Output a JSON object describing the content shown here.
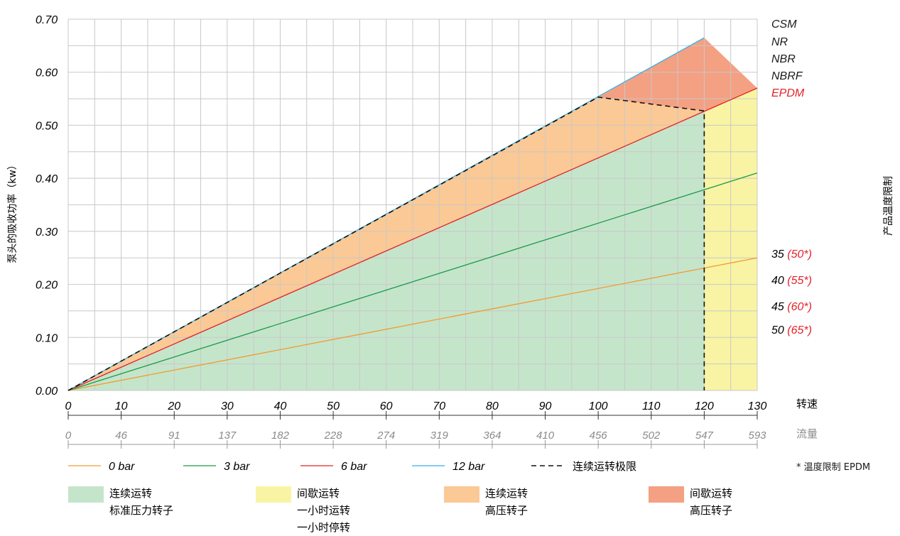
{
  "chart_data": {
    "type": "area",
    "ylabel": "泵头的吸收功率（kw）",
    "ylim": [
      0,
      0.7
    ],
    "y_ticks": [
      "0.00",
      "0.10",
      "0.20",
      "0.30",
      "0.40",
      "0.50",
      "0.60",
      "0.70"
    ],
    "xlim": [
      0,
      130
    ],
    "x_ticks": [
      "0",
      "10",
      "20",
      "30",
      "40",
      "50",
      "60",
      "70",
      "80",
      "90",
      "100",
      "110",
      "120",
      "130"
    ],
    "x_label": "转速",
    "flow_ticks": [
      "0",
      "46",
      "91",
      "137",
      "182",
      "228",
      "274",
      "319",
      "364",
      "410",
      "456",
      "502",
      "547",
      "593"
    ],
    "flow_label": "流量",
    "grid": true,
    "series": [
      {
        "name": "0 bar",
        "color": "#f29a2e",
        "x": [
          0,
          130
        ],
        "y": [
          0,
          0.25
        ]
      },
      {
        "name": "3 bar",
        "color": "#1a9a48",
        "x": [
          0,
          130
        ],
        "y": [
          0,
          0.41
        ]
      },
      {
        "name": "6 bar",
        "color": "#e32228",
        "x": [
          0,
          130
        ],
        "y": [
          0,
          0.57
        ]
      },
      {
        "name": "12 bar",
        "color": "#3aaee0",
        "x": [
          0,
          120
        ],
        "y": [
          0,
          0.665
        ]
      }
    ],
    "limit_line": {
      "name": "连续运转极限",
      "x": [
        0,
        100,
        120,
        120
      ],
      "y": [
        0,
        0.553,
        0.527,
        0
      ]
    },
    "regions": [
      {
        "label1": "连续运转",
        "label2": "标准压力转子",
        "label3": "",
        "color": "#c5e5cb"
      },
      {
        "label1": "间歇运转",
        "label2": "一小时运转",
        "label3": "一小时停转",
        "color": "#f8f4a4"
      },
      {
        "label1": "连续运转",
        "label2": "高压转子",
        "label3": "",
        "color": "#fbc995"
      },
      {
        "label1": "间歇运转",
        "label2": "高压转子",
        "label3": "",
        "color": "#f4a083"
      }
    ],
    "right_axis": {
      "title": "产品温度限制",
      "materials": [
        {
          "text": "CSM",
          "color": "#1a1a1a"
        },
        {
          "text": "NR",
          "color": "#1a1a1a"
        },
        {
          "text": "NBR",
          "color": "#1a1a1a"
        },
        {
          "text": "NBRF",
          "color": "#1a1a1a"
        },
        {
          "text": "EPDM",
          "color": "#e32228"
        }
      ],
      "temps": [
        {
          "value": "35",
          "alt": "(50*)"
        },
        {
          "value": "40",
          "alt": "(55*)"
        },
        {
          "value": "45",
          "alt": "(60*)"
        },
        {
          "value": "50",
          "alt": "(65*)"
        }
      ]
    },
    "note": "* 温度限制 EPDM"
  }
}
